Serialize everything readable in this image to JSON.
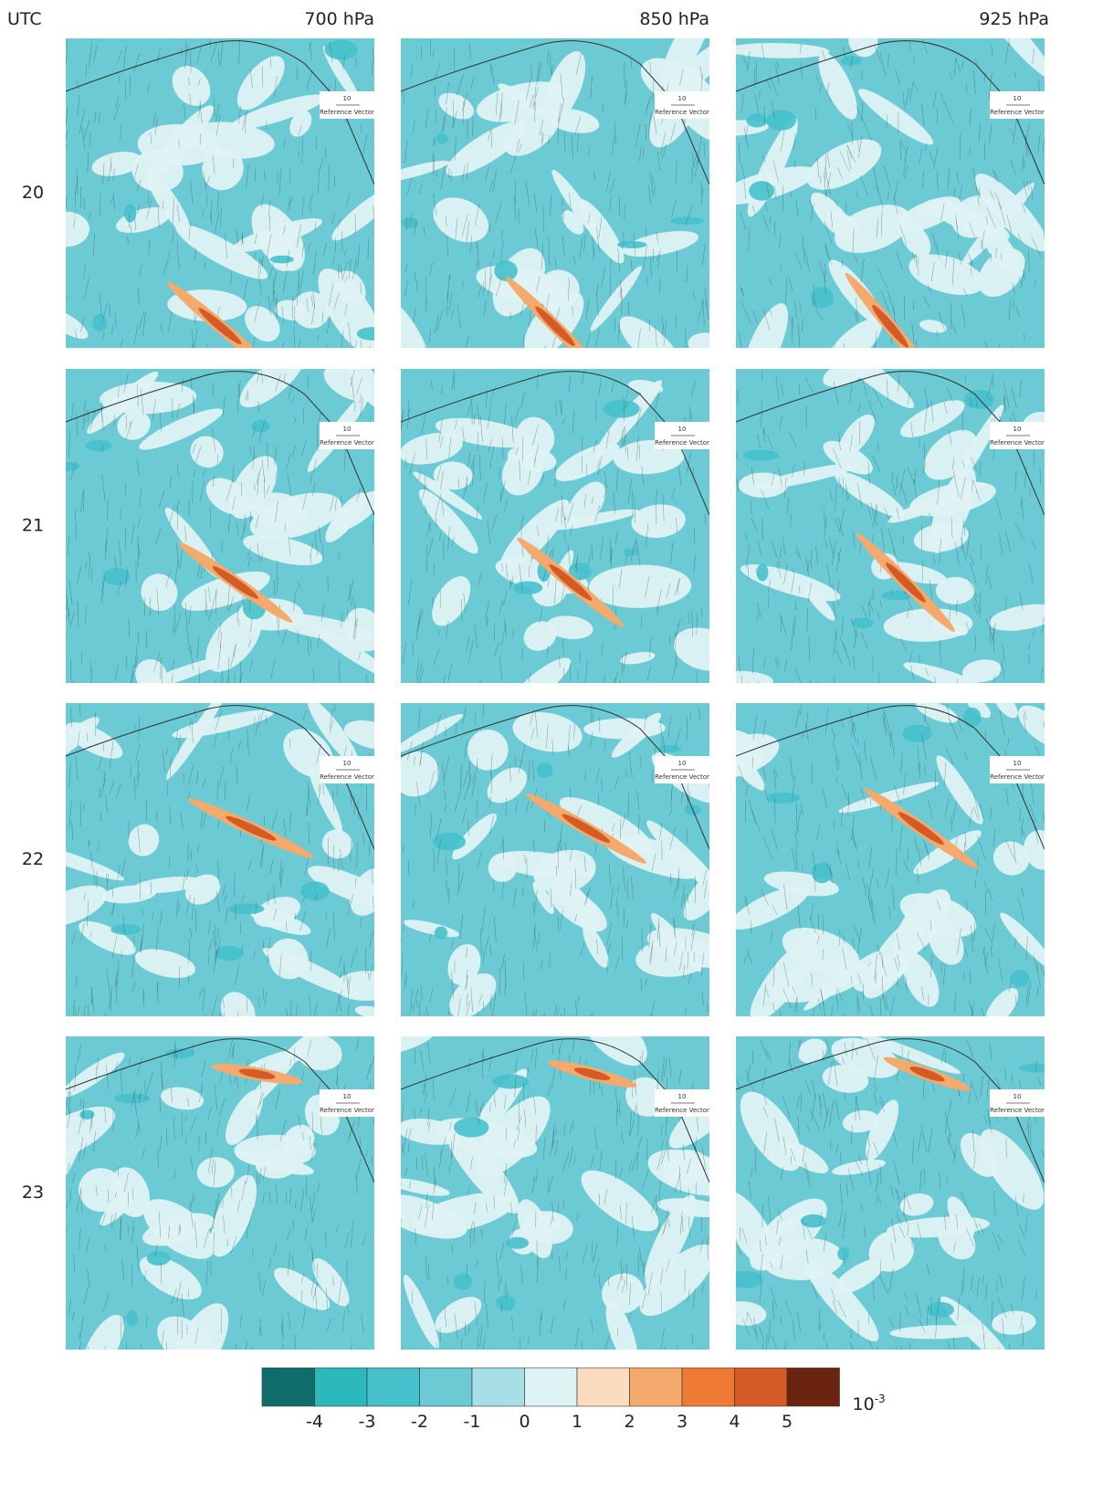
{
  "header": {
    "corner": "UTC",
    "columns": [
      "700 hPa",
      "850 hPa",
      "925 hPa"
    ]
  },
  "rows": [
    "20",
    "21",
    "22",
    "23"
  ],
  "reference_vector": {
    "value": "10",
    "label": "Reference Vector"
  },
  "colorbar": {
    "colors": [
      "#0f6e6b",
      "#2bb9bb",
      "#46c1cc",
      "#6bcad4",
      "#a8dfe6",
      "#dff2f4",
      "#fcdcc0",
      "#f4aa6c",
      "#ee7a35",
      "#d45a26",
      "#6a2410"
    ],
    "ticks": [
      -4,
      -3,
      -2,
      -1,
      0,
      1,
      2,
      3,
      4,
      5
    ],
    "unit": {
      "base": "10",
      "exponent": "-3"
    }
  }
}
